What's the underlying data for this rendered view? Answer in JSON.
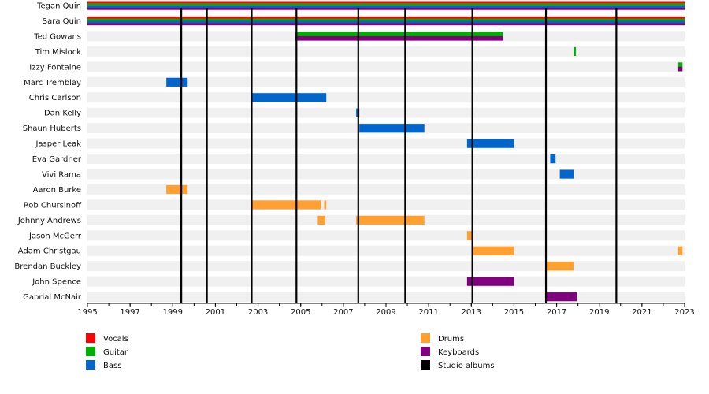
{
  "chart_data": {
    "type": "timeline",
    "x_range": [
      1995,
      2023
    ],
    "x_ticks": [
      1995,
      1997,
      1999,
      2001,
      2003,
      2005,
      2007,
      2009,
      2011,
      2013,
      2015,
      2017,
      2019,
      2021,
      2023
    ],
    "colors": {
      "Vocals": "#ff0000",
      "Guitar": "#00b000",
      "Bass": "#0066cc",
      "Drums": "#ffa030",
      "Keyboards": "#800080",
      "Studio albums": "#000000"
    },
    "members": [
      {
        "name": "Tegan Quin",
        "roles": [
          "Vocals",
          "Guitar",
          "Bass",
          "Keyboards"
        ],
        "periods": [
          [
            1995,
            2023
          ]
        ]
      },
      {
        "name": "Sara Quin",
        "roles": [
          "Vocals",
          "Guitar",
          "Bass",
          "Keyboards"
        ],
        "periods": [
          [
            1995,
            2023
          ]
        ]
      },
      {
        "name": "Ted Gowans",
        "roles": [
          "Guitar",
          "Keyboards"
        ],
        "periods": [
          [
            2004.75,
            2014.5
          ]
        ]
      },
      {
        "name": "Tim Mislock",
        "roles": [
          "Guitar"
        ],
        "periods": [
          [
            2017.8,
            2017.9
          ]
        ]
      },
      {
        "name": "Izzy Fontaine",
        "roles": [
          "Guitar",
          "Keyboards"
        ],
        "periods": [
          [
            2022.7,
            2022.9
          ]
        ]
      },
      {
        "name": "Marc Tremblay",
        "roles": [
          "Bass"
        ],
        "periods": [
          [
            1998.7,
            1999.7
          ]
        ]
      },
      {
        "name": "Chris Carlson",
        "roles": [
          "Bass"
        ],
        "periods": [
          [
            2002.7,
            2006.2
          ]
        ]
      },
      {
        "name": "Dan Kelly",
        "roles": [
          "Bass"
        ],
        "periods": [
          [
            2007.6,
            2007.75
          ]
        ]
      },
      {
        "name": "Shaun Huberts",
        "roles": [
          "Bass"
        ],
        "periods": [
          [
            2007.75,
            2010.8
          ]
        ]
      },
      {
        "name": "Jasper Leak",
        "roles": [
          "Bass"
        ],
        "periods": [
          [
            2012.8,
            2015.0
          ]
        ]
      },
      {
        "name": "Eva Gardner",
        "roles": [
          "Bass"
        ],
        "periods": [
          [
            2016.7,
            2016.95
          ]
        ]
      },
      {
        "name": "Vivi Rama",
        "roles": [
          "Bass"
        ],
        "periods": [
          [
            2017.15,
            2017.8
          ]
        ]
      },
      {
        "name": "Aaron Burke",
        "roles": [
          "Drums"
        ],
        "periods": [
          [
            1998.7,
            1999.7
          ]
        ]
      },
      {
        "name": "Rob Chursinoff",
        "roles": [
          "Drums"
        ],
        "periods": [
          [
            2002.7,
            2005.95
          ],
          [
            2006.1,
            2006.2
          ]
        ]
      },
      {
        "name": "Johnny Andrews",
        "roles": [
          "Drums"
        ],
        "periods": [
          [
            2005.8,
            2006.15
          ],
          [
            2007.6,
            2010.8
          ]
        ]
      },
      {
        "name": "Jason McGerr",
        "roles": [
          "Drums"
        ],
        "periods": [
          [
            2012.8,
            2013.05
          ]
        ]
      },
      {
        "name": "Adam Christgau",
        "roles": [
          "Drums"
        ],
        "periods": [
          [
            2013.05,
            2015.0
          ],
          [
            2022.7,
            2022.9
          ]
        ]
      },
      {
        "name": "Brendan Buckley",
        "roles": [
          "Drums"
        ],
        "periods": [
          [
            2016.5,
            2017.8
          ]
        ]
      },
      {
        "name": "John Spence",
        "roles": [
          "Keyboards"
        ],
        "periods": [
          [
            2012.8,
            2015.0
          ]
        ]
      },
      {
        "name": "Gabrial McNair",
        "roles": [
          "Keyboards"
        ],
        "periods": [
          [
            2016.5,
            2017.95
          ]
        ]
      }
    ],
    "studio_albums": [
      1999.4,
      2000.6,
      2002.7,
      2004.8,
      2007.7,
      2009.9,
      2013.05,
      2016.5,
      2019.8
    ],
    "legend": [
      "Vocals",
      "Guitar",
      "Bass",
      "Drums",
      "Keyboards",
      "Studio albums"
    ]
  }
}
